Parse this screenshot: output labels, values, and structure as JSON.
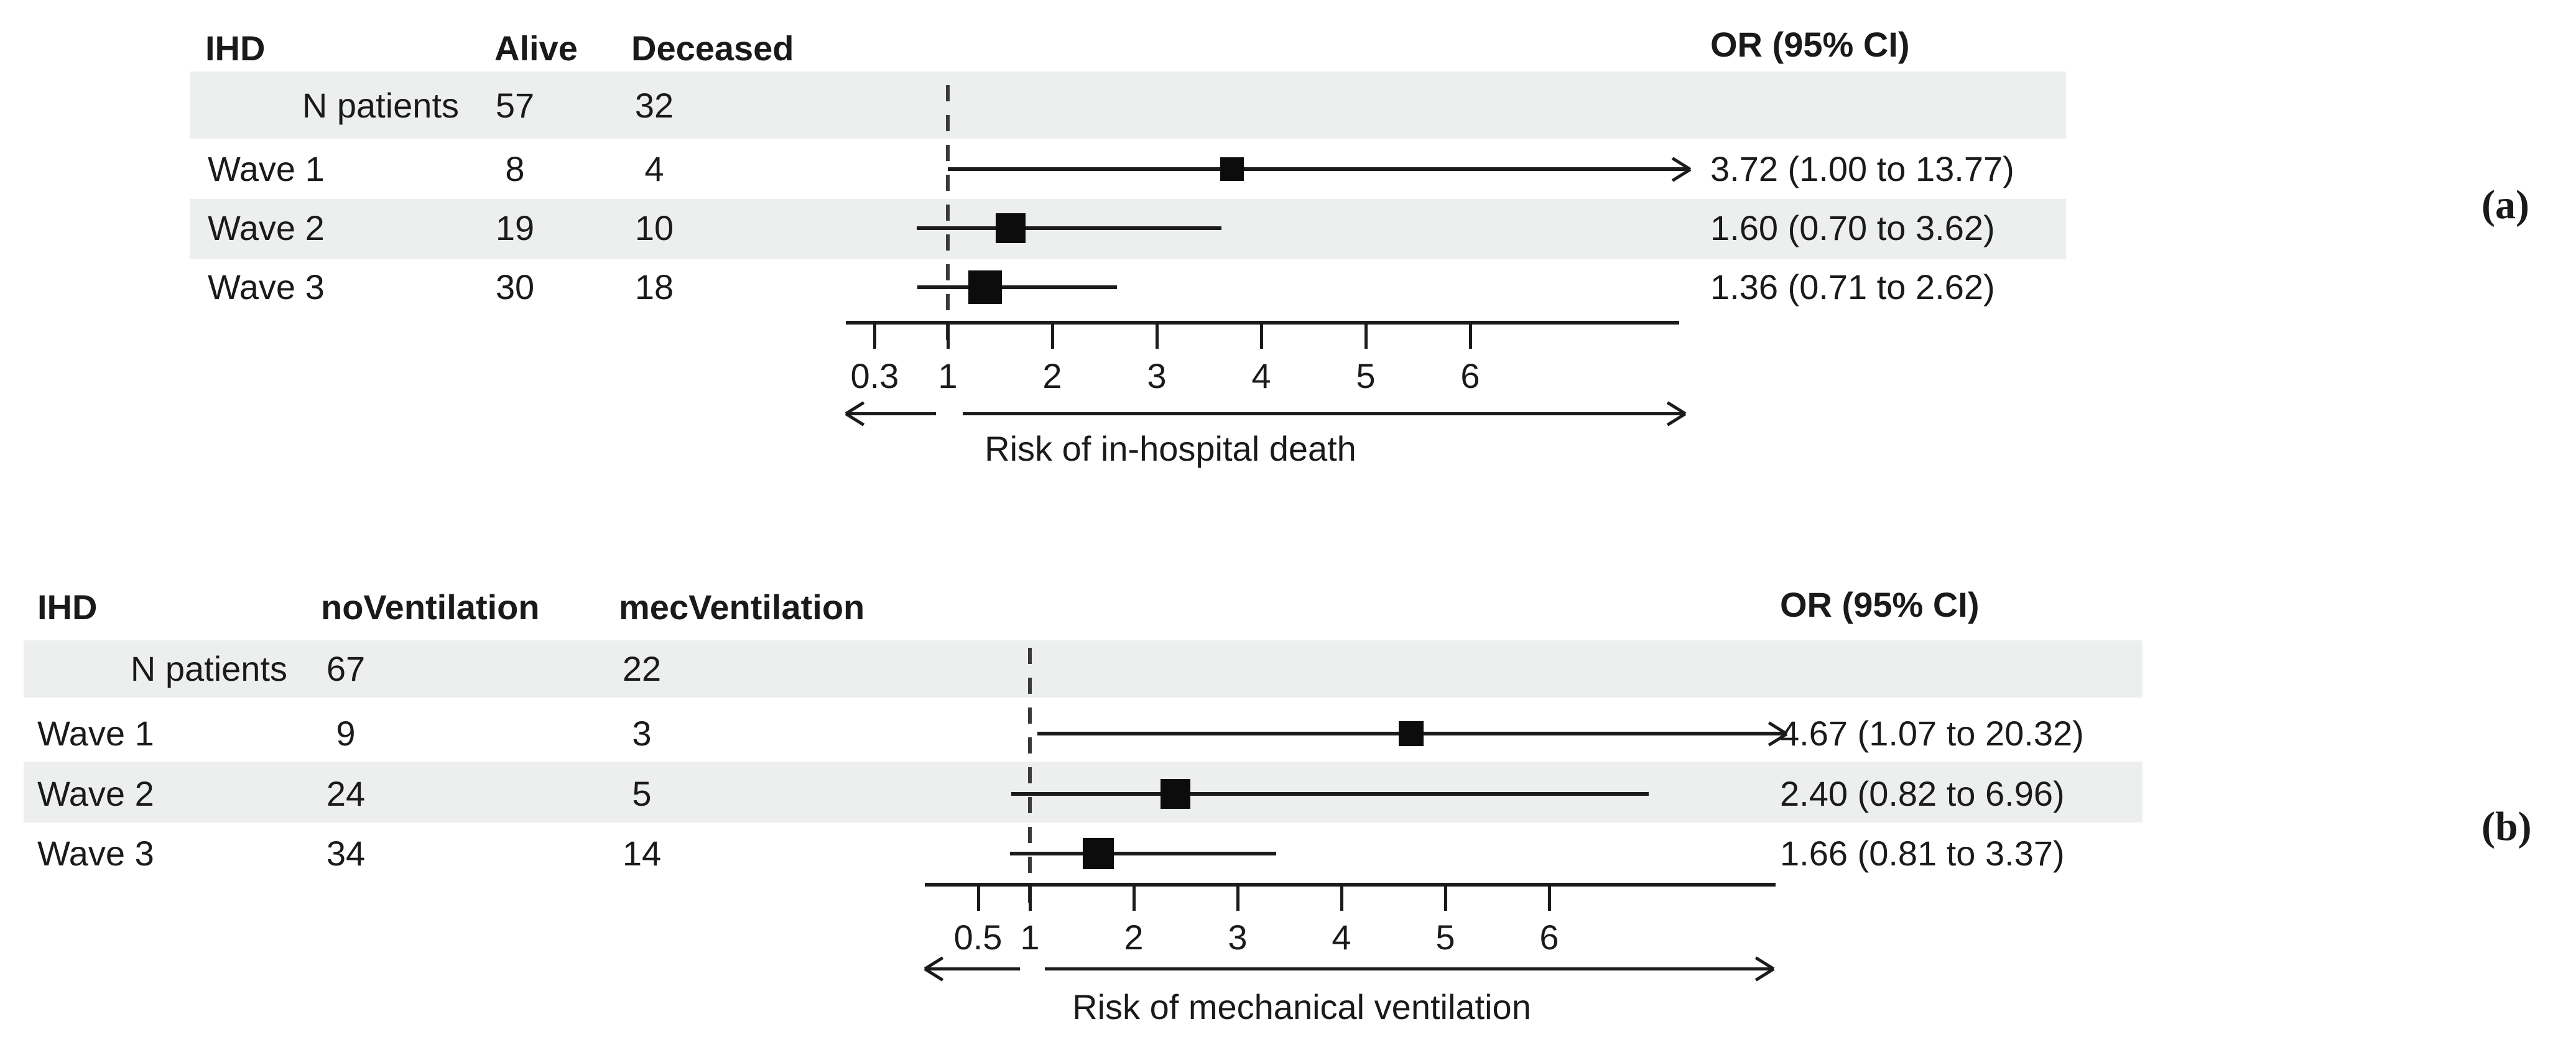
{
  "figure": {
    "panels": [
      {
        "label": "(a)",
        "table": {
          "group_header": "IHD",
          "col1_header": "Alive",
          "col2_header": "Deceased",
          "rows": [
            {
              "label": "N patients",
              "v1": "57",
              "v2": "32"
            },
            {
              "label": "Wave 1",
              "v1": "8",
              "v2": "4"
            },
            {
              "label": "Wave 2",
              "v1": "19",
              "v2": "10"
            },
            {
              "label": "Wave 3",
              "v1": "30",
              "v2": "18"
            }
          ]
        },
        "or_header": "OR (95% CI)",
        "or_values": [
          "3.72 (1.00 to 13.77)",
          "1.60 (0.70 to 3.62)",
          "1.36 (0.71 to 2.62)"
        ],
        "axis_label": "Risk of in-hospital death"
      },
      {
        "label": "(b)",
        "table": {
          "group_header": "IHD",
          "col1_header": "noVentilation",
          "col2_header": "mecVentilation",
          "rows": [
            {
              "label": "N patients",
              "v1": "67",
              "v2": "22"
            },
            {
              "label": "Wave 1",
              "v1": "9",
              "v2": "3"
            },
            {
              "label": "Wave 2",
              "v1": "24",
              "v2": "5"
            },
            {
              "label": "Wave 3",
              "v1": "34",
              "v2": "14"
            }
          ]
        },
        "or_header": "OR (95% CI)",
        "or_values": [
          "4.67 (1.07 to 20.32)",
          "2.40 (0.82 to 6.96)",
          "1.66 (0.81 to 3.37)"
        ],
        "axis_label": "Risk of mechanical ventilation"
      }
    ]
  },
  "chart_data": [
    {
      "type": "forest",
      "panel": "a",
      "outcome_label": "Risk of in-hospital death",
      "group_header": "IHD",
      "columns": [
        "Alive",
        "Deceased"
      ],
      "n_patients": {
        "alive": 57,
        "deceased": 32
      },
      "reference_line": 1,
      "x_ticks": [
        0.3,
        1,
        2,
        3,
        4,
        5,
        6
      ],
      "x_tick_labels": [
        "0.3",
        "1",
        "2",
        "3",
        "4",
        "5",
        "6"
      ],
      "x_axis_range_approx": [
        0,
        8
      ],
      "series": [
        {
          "label": "Wave 1",
          "alive": 8,
          "deceased": 4,
          "or": 3.72,
          "ci_low": 1.0,
          "ci_high": 13.77,
          "or_text": "3.72 (1.00 to 13.77)",
          "ci_truncated": true
        },
        {
          "label": "Wave 2",
          "alive": 19,
          "deceased": 10,
          "or": 1.6,
          "ci_low": 0.7,
          "ci_high": 3.62,
          "or_text": "1.60 (0.70 to 3.62)",
          "ci_truncated": false
        },
        {
          "label": "Wave 3",
          "alive": 30,
          "deceased": 18,
          "or": 1.36,
          "ci_low": 0.71,
          "ci_high": 2.62,
          "or_text": "1.36 (0.71 to 2.62)",
          "ci_truncated": false
        }
      ]
    },
    {
      "type": "forest",
      "panel": "b",
      "outcome_label": "Risk of mechanical ventilation",
      "group_header": "IHD",
      "columns": [
        "noVentilation",
        "mecVentilation"
      ],
      "n_patients": {
        "noVentilation": 67,
        "mecVentilation": 22
      },
      "reference_line": 1,
      "x_ticks": [
        0.5,
        1,
        2,
        3,
        4,
        5,
        6
      ],
      "x_tick_labels": [
        "0.5",
        "1",
        "2",
        "3",
        "4",
        "5",
        "6"
      ],
      "x_axis_range_approx": [
        0,
        8
      ],
      "series": [
        {
          "label": "Wave 1",
          "noVentilation": 9,
          "mecVentilation": 3,
          "or": 4.67,
          "ci_low": 1.07,
          "ci_high": 20.32,
          "or_text": "4.67 (1.07 to 20.32)",
          "ci_truncated": true
        },
        {
          "label": "Wave 2",
          "noVentilation": 24,
          "mecVentilation": 5,
          "or": 2.4,
          "ci_low": 0.82,
          "ci_high": 6.96,
          "or_text": "2.40 (0.82 to 6.96)",
          "ci_truncated": false
        },
        {
          "label": "Wave 3",
          "noVentilation": 34,
          "mecVentilation": 14,
          "or": 1.66,
          "ci_low": 0.81,
          "ci_high": 3.37,
          "or_text": "1.66 (0.81 to 3.37)",
          "ci_truncated": false
        }
      ]
    }
  ]
}
